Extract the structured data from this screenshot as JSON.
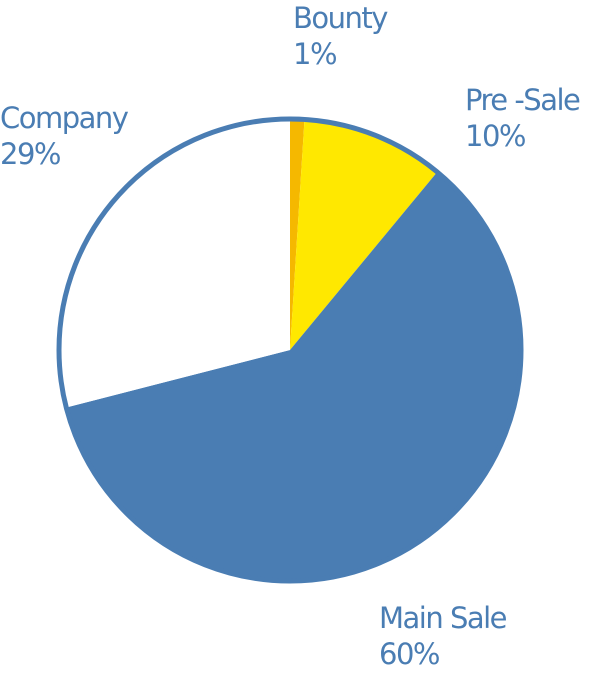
{
  "chart_data": {
    "type": "pie",
    "title": "",
    "slices": [
      {
        "label": "Bounty",
        "value": 1,
        "value_label": "1%",
        "color": "#f5b800"
      },
      {
        "label": "Pre -Sale",
        "value": 10,
        "value_label": "10%",
        "color": "#ffe800"
      },
      {
        "label": "Main Sale",
        "value": 60,
        "value_label": "60%",
        "color": "#4a7db3"
      },
      {
        "label": "Company",
        "value": 29,
        "value_label": "29%",
        "color": "#ffffff"
      }
    ],
    "start": "12 o'clock",
    "direction": "clockwise",
    "outline_color": "#4a7db3",
    "label_color": "#4a7db3"
  }
}
